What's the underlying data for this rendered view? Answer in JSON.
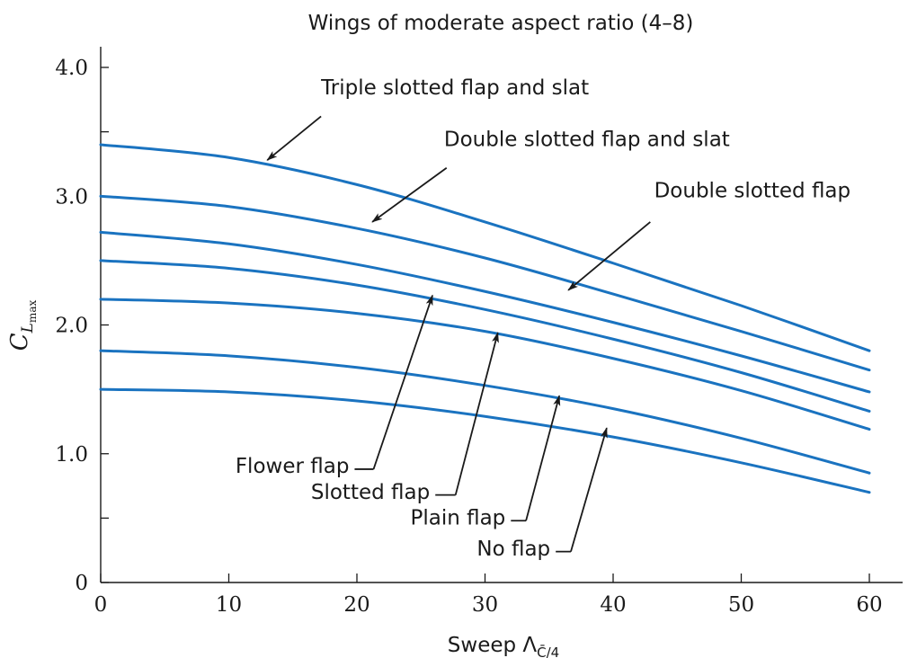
{
  "chart_data": {
    "type": "line",
    "title": "Wings of moderate aspect ratio (4–8)",
    "xlabel": "Sweep Λ",
    "xlabel_subscript": "C̄/4",
    "ylabel": "C",
    "ylabel_subscript": "L",
    "ylabel_subsubscript": "max",
    "xlim": [
      0,
      62
    ],
    "ylim": [
      0,
      4.2
    ],
    "x_ticks": [
      0,
      10,
      20,
      30,
      40,
      50,
      60
    ],
    "x_tick_labels": [
      "0",
      "10",
      "20",
      "30",
      "40",
      "50",
      "60"
    ],
    "y_ticks": [
      0,
      0.5,
      1.0,
      1.5,
      2.0,
      2.5,
      3.0,
      3.5,
      4.0
    ],
    "y_tick_labels": [
      "0",
      "",
      "1.0",
      "",
      "2.0",
      "",
      "3.0",
      "",
      "4.0"
    ],
    "grid": false,
    "line_color": "#1a73c0",
    "arrow_color": "#1a1a1a",
    "x": [
      0,
      10,
      20,
      30,
      40,
      50,
      60
    ],
    "series": [
      {
        "name": "Triple slotted flap and slat",
        "values": [
          3.4,
          3.3,
          3.09,
          2.8,
          2.48,
          2.15,
          1.8
        ]
      },
      {
        "name": "Double slotted flap and slat",
        "values": [
          3.0,
          2.92,
          2.75,
          2.52,
          2.24,
          1.95,
          1.65
        ]
      },
      {
        "name": "Double slotted flap",
        "values": [
          2.72,
          2.63,
          2.47,
          2.26,
          2.02,
          1.76,
          1.48
        ]
      },
      {
        "name": "",
        "values": [
          2.5,
          2.44,
          2.31,
          2.12,
          1.89,
          1.63,
          1.33
        ]
      },
      {
        "name": "",
        "values": [
          2.2,
          2.17,
          2.09,
          1.95,
          1.74,
          1.49,
          1.19
        ]
      },
      {
        "name": "",
        "values": [
          1.8,
          1.76,
          1.67,
          1.53,
          1.35,
          1.12,
          0.85
        ]
      },
      {
        "name": "",
        "values": [
          1.5,
          1.48,
          1.41,
          1.29,
          1.13,
          0.93,
          0.7
        ]
      }
    ],
    "annotations": [
      {
        "text": "Triple slotted flap and slat",
        "series_index": 0,
        "anchor": "left",
        "text_x": 17.2,
        "text_y": 3.79,
        "arrow_start": [
          17.2,
          3.62
        ],
        "arrow_end": [
          13.0,
          3.28
        ]
      },
      {
        "text": "Double slotted flap and slat",
        "series_index": 1,
        "anchor": "left",
        "text_x": 26.8,
        "text_y": 3.39,
        "arrow_start": [
          27.0,
          3.22
        ],
        "arrow_end": [
          21.2,
          2.8
        ]
      },
      {
        "text": "Double slotted flap",
        "series_index": 2,
        "anchor": "left",
        "text_x": 43.2,
        "text_y": 2.99,
        "arrow_start": [
          42.9,
          2.8
        ],
        "arrow_end": [
          36.5,
          2.27
        ]
      },
      {
        "text": "Flower flap",
        "series_index": 3,
        "anchor": "end",
        "text_x": 19.4,
        "text_y": 0.85,
        "arrow_start": [
          21.3,
          0.88
        ],
        "arrow_end": [
          25.9,
          2.23
        ]
      },
      {
        "text": "Slotted flap",
        "series_index": 4,
        "anchor": "end",
        "text_x": 25.7,
        "text_y": 0.65,
        "arrow_start": [
          27.7,
          0.68
        ],
        "arrow_end": [
          31.0,
          1.94
        ]
      },
      {
        "text": "Plain flap",
        "series_index": 5,
        "anchor": "end",
        "text_x": 31.6,
        "text_y": 0.45,
        "arrow_start": [
          33.2,
          0.48
        ],
        "arrow_end": [
          35.8,
          1.45
        ]
      },
      {
        "text": "No flap",
        "series_index": 6,
        "anchor": "end",
        "text_x": 35.1,
        "text_y": 0.21,
        "arrow_start": [
          36.7,
          0.24
        ],
        "arrow_end": [
          39.5,
          1.2
        ]
      }
    ]
  }
}
